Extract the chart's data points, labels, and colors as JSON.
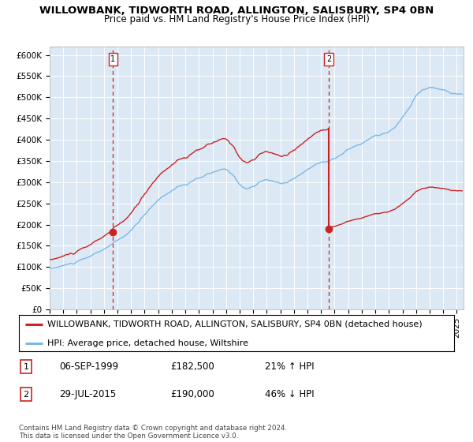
{
  "title_line1": "WILLOWBANK, TIDWORTH ROAD, ALLINGTON, SALISBURY, SP4 0BN",
  "title_line2": "Price paid vs. HM Land Registry's House Price Index (HPI)",
  "ylim": [
    0,
    620000
  ],
  "yticks": [
    0,
    50000,
    100000,
    150000,
    200000,
    250000,
    300000,
    350000,
    400000,
    450000,
    500000,
    550000,
    600000
  ],
  "ytick_labels": [
    "£0",
    "£50K",
    "£100K",
    "£150K",
    "£200K",
    "£250K",
    "£300K",
    "£350K",
    "£400K",
    "£450K",
    "£500K",
    "£550K",
    "£600K"
  ],
  "xlim_start": 1995.0,
  "xlim_end": 2025.5,
  "plot_bg_color": "#dce9f5",
  "hpi_line_color": "#7ab8e8",
  "sale_line_color": "#cc2222",
  "sale_dot_color": "#cc2222",
  "vline_color": "#cc2222",
  "marker1_x": 1999.67,
  "marker1_y": 182500,
  "marker2_x": 2015.57,
  "marker2_y": 190000,
  "legend_label1": "WILLOWBANK, TIDWORTH ROAD, ALLINGTON, SALISBURY, SP4 0BN (detached house)",
  "legend_label2": "HPI: Average price, detached house, Wiltshire",
  "table_row1_num": "1",
  "table_row1_date": "06-SEP-1999",
  "table_row1_price": "£182,500",
  "table_row1_hpi": "21% ↑ HPI",
  "table_row2_num": "2",
  "table_row2_date": "29-JUL-2015",
  "table_row2_price": "£190,000",
  "table_row2_hpi": "46% ↓ HPI",
  "footnote": "Contains HM Land Registry data © Crown copyright and database right 2024.\nThis data is licensed under the Open Government Licence v3.0.",
  "title_fontsize": 9.5,
  "subtitle_fontsize": 8.5,
  "tick_fontsize": 7.5,
  "legend_fontsize": 8
}
